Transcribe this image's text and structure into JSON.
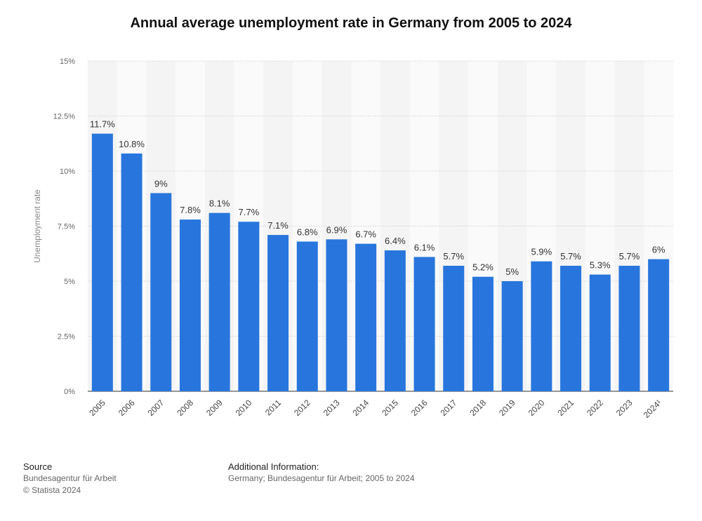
{
  "chart_data": {
    "type": "bar",
    "title": "Annual average unemployment rate in Germany from 2005 to 2024",
    "ylabel": "Unemployment rate",
    "xlabel": "",
    "ylim": [
      0,
      15
    ],
    "yticks": [
      "0%",
      "2.5%",
      "5%",
      "7.5%",
      "10%",
      "12.5%",
      "15%"
    ],
    "ytick_values": [
      0,
      2.5,
      5,
      7.5,
      10,
      12.5,
      15
    ],
    "categories": [
      "2005",
      "2006",
      "2007",
      "2008",
      "2009",
      "2010",
      "2011",
      "2012",
      "2013",
      "2014",
      "2015",
      "2016",
      "2017",
      "2018",
      "2019",
      "2020",
      "2021",
      "2022",
      "2023",
      "2024¹"
    ],
    "values": [
      11.7,
      10.8,
      9,
      7.8,
      8.1,
      7.7,
      7.1,
      6.8,
      6.9,
      6.7,
      6.4,
      6.1,
      5.7,
      5.2,
      5,
      5.9,
      5.7,
      5.3,
      5.7,
      6
    ],
    "data_labels": [
      "11.7%",
      "10.8%",
      "9%",
      "7.8%",
      "8.1%",
      "7.7%",
      "7.1%",
      "6.8%",
      "6.9%",
      "6.7%",
      "6.4%",
      "6.1%",
      "5.7%",
      "5.2%",
      "5%",
      "5.9%",
      "5.7%",
      "5.3%",
      "5.7%",
      "6%"
    ],
    "bar_color": "#2876dd",
    "grid": true,
    "legend": "none"
  },
  "footer": {
    "source_heading": "Source",
    "source_line1": "Bundesagentur für Arbeit",
    "source_line2": "© Statista 2024",
    "info_heading": "Additional Information:",
    "info_text": "Germany; Bundesagentur für Arbeit; 2005 to 2024"
  }
}
